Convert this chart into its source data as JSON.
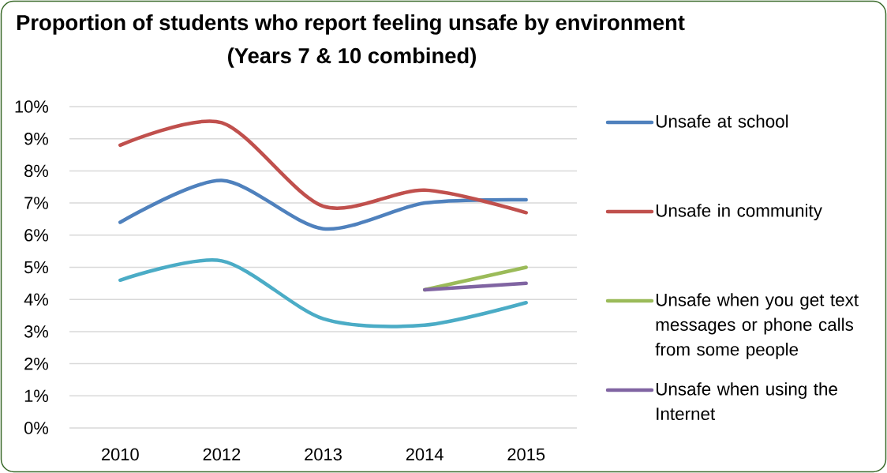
{
  "chart_data": {
    "type": "line",
    "title": "Proportion of students who report feeling unsafe by environment",
    "subtitle": "(Years 7 & 10 combined)",
    "categories": [
      "2010",
      "2012",
      "2013",
      "2014",
      "2015"
    ],
    "series": [
      {
        "name": "Unsafe at school",
        "color": "#4f81bd",
        "values": [
          6.4,
          7.7,
          6.2,
          7.0,
          7.1
        ]
      },
      {
        "name": "Unsafe in community",
        "color": "#c0504d",
        "values": [
          8.8,
          9.5,
          6.9,
          7.4,
          6.7
        ]
      },
      {
        "color": "#4bacc6",
        "values": [
          4.6,
          5.2,
          3.4,
          3.2,
          3.9
        ]
      },
      {
        "name": "Unsafe when you get text messages or phone calls from some people",
        "color": "#9bbb59",
        "values": [
          null,
          null,
          null,
          4.3,
          5.0
        ]
      },
      {
        "name": "Unsafe when using the Internet",
        "color": "#8064a2",
        "values": [
          null,
          null,
          null,
          4.3,
          4.5
        ]
      }
    ],
    "ylim": [
      0,
      10
    ],
    "yticks": [
      {
        "value": 0,
        "label": "0%"
      },
      {
        "value": 1,
        "label": "1%"
      },
      {
        "value": 2,
        "label": "2%"
      },
      {
        "value": 3,
        "label": "3%"
      },
      {
        "value": 4,
        "label": "4%"
      },
      {
        "value": 5,
        "label": "5%"
      },
      {
        "value": 6,
        "label": "6%"
      },
      {
        "value": 7,
        "label": "7%"
      },
      {
        "value": 8,
        "label": "8%"
      },
      {
        "value": 9,
        "label": "9%"
      },
      {
        "value": 10,
        "label": "10%"
      }
    ],
    "grid": "y",
    "legend": "right"
  }
}
